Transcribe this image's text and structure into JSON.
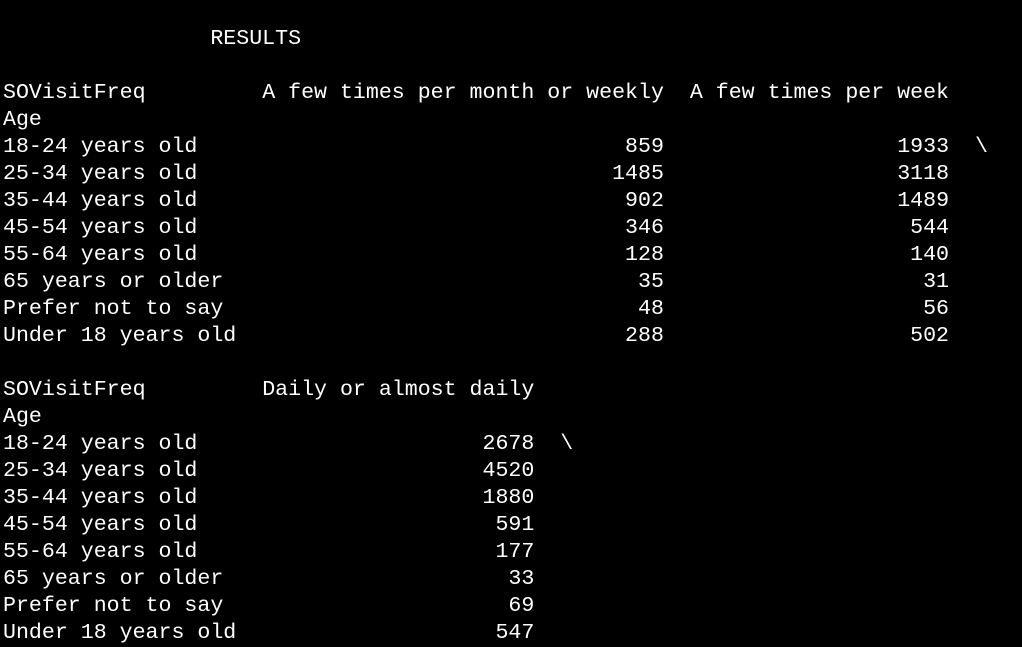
{
  "title": "RESULTS",
  "tables": [
    {
      "header": {
        "label": "SOVisitFreq",
        "columns": [
          "A few times per month or weekly",
          "A few times per week"
        ],
        "continuation": "\\"
      },
      "index_name": "Age",
      "rows": [
        {
          "label": "18-24 years old",
          "values": [
            "859",
            "1933"
          ]
        },
        {
          "label": "25-34 years old",
          "values": [
            "1485",
            "3118"
          ]
        },
        {
          "label": "35-44 years old",
          "values": [
            "902",
            "1489"
          ]
        },
        {
          "label": "45-54 years old",
          "values": [
            "346",
            "544"
          ]
        },
        {
          "label": "55-64 years old",
          "values": [
            "128",
            "140"
          ]
        },
        {
          "label": "65 years or older",
          "values": [
            "35",
            "31"
          ]
        },
        {
          "label": "Prefer not to say",
          "values": [
            "48",
            "56"
          ]
        },
        {
          "label": "Under 18 years old",
          "values": [
            "288",
            "502"
          ]
        }
      ]
    },
    {
      "header": {
        "label": "SOVisitFreq",
        "columns": [
          "Daily or almost daily"
        ],
        "continuation": "\\"
      },
      "index_name": "Age",
      "rows": [
        {
          "label": "18-24 years old",
          "values": [
            "2678"
          ]
        },
        {
          "label": "25-34 years old",
          "values": [
            "4520"
          ]
        },
        {
          "label": "35-44 years old",
          "values": [
            "1880"
          ]
        },
        {
          "label": "45-54 years old",
          "values": [
            "591"
          ]
        },
        {
          "label": "55-64 years old",
          "values": [
            "177"
          ]
        },
        {
          "label": "65 years or older",
          "values": [
            "33"
          ]
        },
        {
          "label": "Prefer not to say",
          "values": [
            "69"
          ]
        },
        {
          "label": "Under 18 years old",
          "values": [
            "547"
          ]
        }
      ]
    }
  ]
}
